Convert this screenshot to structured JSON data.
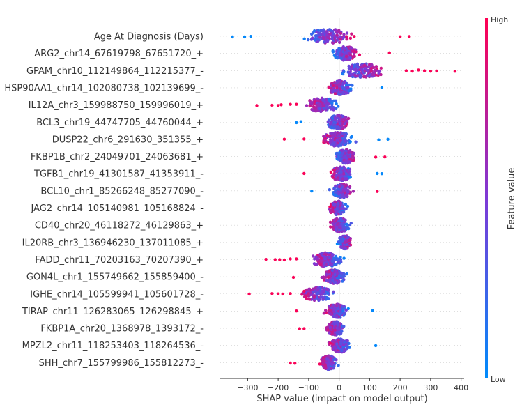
{
  "chart_data": {
    "type": "scatter",
    "subtype": "shap-beeswarm",
    "xlabel": "SHAP value (impact on model output)",
    "xlim": [
      -390,
      410
    ],
    "xticks": [
      -300,
      -200,
      -100,
      0,
      100,
      200,
      300,
      400
    ],
    "colorbar": {
      "label": "Feature value",
      "high_label": "High",
      "low_label": "Low",
      "low_color": "#008bfb",
      "mid_color": "#7e39d6",
      "high_color": "#ff0052"
    },
    "features": [
      {
        "name": "Age At Diagnosis (Days)",
        "range": [
          -350,
          230
        ],
        "trend": 1,
        "outliers_neg": [
          -350,
          -310,
          -290
        ],
        "outliers_pos": [
          200,
          230
        ]
      },
      {
        "name": "ARG2_chr14_67619798_67651720_+",
        "range": [
          -95,
          170
        ],
        "trend": 1,
        "outliers_neg": [],
        "outliers_pos": [
          165
        ]
      },
      {
        "name": "GPAM_chr10_112149864_112215377_-",
        "range": [
          -110,
          380
        ],
        "trend": 1,
        "outliers_neg": [],
        "outliers_pos": [
          220,
          240,
          260,
          280,
          300,
          320,
          380
        ]
      },
      {
        "name": "HSP90AA1_chr14_102080738_102139699_-",
        "range": [
          -130,
          140
        ],
        "trend": -1,
        "outliers_neg": [],
        "outliers_pos": [
          140
        ]
      },
      {
        "name": "IL12A_chr3_159988750_159996019_+",
        "range": [
          -270,
          70
        ],
        "trend": -1,
        "outliers_neg": [
          -270,
          -220,
          -200,
          -190,
          -160,
          -140
        ],
        "outliers_pos": []
      },
      {
        "name": "BCL3_chr19_44747705_44760044_+",
        "range": [
          -140,
          125
        ],
        "trend": 1,
        "outliers_neg": [
          -140,
          -125
        ],
        "outliers_pos": []
      },
      {
        "name": "DUSP22_chr6_291630_351355_+",
        "range": [
          -180,
          160
        ],
        "trend": -1,
        "outliers_neg": [
          -180,
          -115
        ],
        "outliers_pos": [
          130,
          160
        ]
      },
      {
        "name": "FKBP1B_chr2_24049701_24063681_+",
        "range": [
          -70,
          150
        ],
        "trend": 1,
        "outliers_neg": [],
        "outliers_pos": [
          120,
          150
        ]
      },
      {
        "name": "TGFB1_chr19_41301587_41353911_-",
        "range": [
          -115,
          140
        ],
        "trend": -1,
        "outliers_neg": [
          -115
        ],
        "outliers_pos": [
          125,
          140
        ]
      },
      {
        "name": "BCL10_chr1_85266248_85277090_-",
        "range": [
          -90,
          125
        ],
        "trend": 1,
        "outliers_neg": [
          -90
        ],
        "outliers_pos": [
          125
        ]
      },
      {
        "name": "JAG2_chr14_105140981_105168824_-",
        "range": [
          -105,
          90
        ],
        "trend": -1,
        "outliers_neg": [],
        "outliers_pos": []
      },
      {
        "name": "CD40_chr20_46118272_46129863_+",
        "range": [
          -100,
          110
        ],
        "trend": -1,
        "outliers_neg": [],
        "outliers_pos": []
      },
      {
        "name": "IL20RB_chr3_136946230_137011085_+",
        "range": [
          -40,
          110
        ],
        "trend": 1,
        "outliers_neg": [],
        "outliers_pos": []
      },
      {
        "name": "FADD_chr11_70203163_70207390_+",
        "range": [
          -240,
          95
        ],
        "trend": -1,
        "outliers_neg": [
          -240,
          -210,
          -195,
          -180,
          -160,
          -140
        ],
        "outliers_pos": []
      },
      {
        "name": "GON4L_chr1_155749662_155859400_-",
        "range": [
          -150,
          90
        ],
        "trend": -1,
        "outliers_neg": [
          -150
        ],
        "outliers_pos": []
      },
      {
        "name": "IGHE_chr14_105599941_105601728_-",
        "range": [
          -295,
          35
        ],
        "trend": -1,
        "outliers_neg": [
          -295,
          -220,
          -200,
          -185,
          -160
        ],
        "outliers_pos": []
      },
      {
        "name": "TIRAP_chr11_126283065_126298845_+",
        "range": [
          -140,
          110
        ],
        "trend": -1,
        "outliers_neg": [
          -140
        ],
        "outliers_pos": [
          110
        ]
      },
      {
        "name": "FKBP1A_chr20_1368978_1393172_-",
        "range": [
          -130,
          90
        ],
        "trend": -1,
        "outliers_neg": [
          -130,
          -115
        ],
        "outliers_pos": []
      },
      {
        "name": "MPZL2_chr11_118253403_118264536_-",
        "range": [
          -110,
          120
        ],
        "trend": -1,
        "outliers_neg": [],
        "outliers_pos": [
          120
        ]
      },
      {
        "name": "SHH_chr7_155799986_155812273_-",
        "range": [
          -160,
          35
        ],
        "trend": -1,
        "outliers_neg": [
          -160,
          -145
        ],
        "outliers_pos": []
      }
    ]
  }
}
